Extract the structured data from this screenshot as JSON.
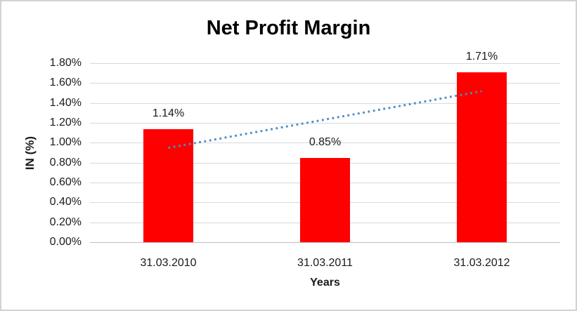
{
  "window": {
    "background": "#ffffff",
    "border_color": "#d2d2d2"
  },
  "chart_data": {
    "type": "bar",
    "title": "Net Profit Margin",
    "categories": [
      "31.03.2010",
      "31.03.2011",
      "31.03.2012"
    ],
    "values": [
      1.14,
      0.85,
      1.71
    ],
    "data_labels": [
      "1.14%",
      "0.85%",
      "1.71%"
    ],
    "xlabel": "Years",
    "ylabel": "IN (%)",
    "ylim": [
      0,
      1.8
    ],
    "ytick_step": 0.2,
    "ytick_labels": [
      "0.00%",
      "0.20%",
      "0.40%",
      "0.60%",
      "0.80%",
      "1.00%",
      "1.20%",
      "1.40%",
      "1.60%",
      "1.80%"
    ],
    "grid": true,
    "legend_position": "none",
    "bar_color": "#ff0000",
    "gridline_color": "#d9d9d9",
    "axis_line_color": "#bfbfbf",
    "text_color": "#1a1a1a",
    "title_color": "#000000",
    "trendline": {
      "type": "linear",
      "style": "dotted",
      "color": "#4e8bc8"
    }
  }
}
